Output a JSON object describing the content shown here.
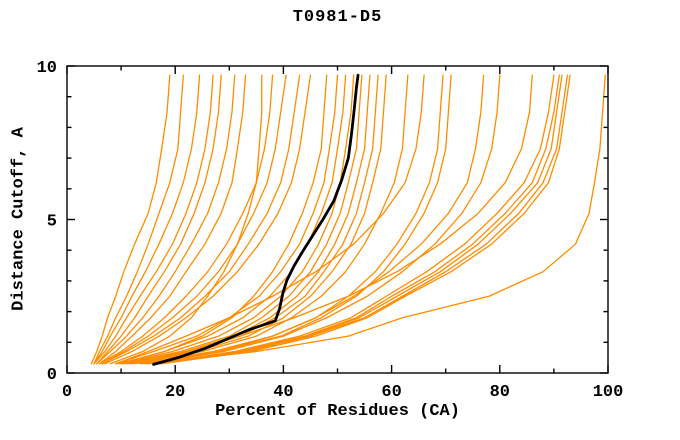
{
  "chart_data": {
    "type": "line",
    "title": "T0981-D5",
    "xlabel": "Percent of Residues (CA)",
    "ylabel": "Distance Cutoff, A",
    "xlim": [
      0,
      100
    ],
    "ylim": [
      0,
      10
    ],
    "x_major_ticks": [
      0,
      20,
      40,
      60,
      80,
      100
    ],
    "x_minor_tick_step": 10,
    "y_major_ticks": [
      0,
      5,
      10
    ],
    "y_minor_tick_step": 1,
    "grid": false,
    "legend": false,
    "frame": "box-with-inward-ticks",
    "orange_color": "#ff8c00",
    "highlight_color": "#000000",
    "background_color": "#ffffff",
    "cutoffs": [
      0.3,
      0.7,
      1.2,
      1.8,
      2.5,
      3.3,
      4.2,
      5.2,
      6.2,
      7.3,
      8.5,
      9.7
    ],
    "model_percents": [
      [
        4.5,
        5.5,
        6.5,
        7.5,
        9,
        10.5,
        12.5,
        15,
        16.5,
        17.5,
        18.5,
        19
      ],
      [
        5,
        6,
        7.5,
        9,
        11,
        13,
        15,
        17,
        19,
        20.5,
        21,
        21.5
      ],
      [
        5,
        6.5,
        8,
        10,
        12,
        14.5,
        17,
        19.5,
        21.5,
        23,
        24,
        24.5
      ],
      [
        5,
        7,
        9,
        11,
        13.5,
        16.5,
        19.5,
        22,
        24,
        25.5,
        26.5,
        27
      ],
      [
        5.5,
        7.5,
        10,
        12.5,
        15,
        18,
        21,
        23.5,
        25.5,
        27,
        28,
        28.5
      ],
      [
        5.5,
        8,
        11,
        14,
        17,
        20,
        23,
        26,
        28,
        29.5,
        30.5,
        31
      ],
      [
        6,
        9,
        12,
        15.5,
        19,
        22,
        25.5,
        28.5,
        30.5,
        31.5,
        32.5,
        33
      ],
      [
        8,
        14,
        19,
        23,
        26,
        29,
        31.5,
        33.5,
        35,
        35.5,
        36,
        36
      ],
      [
        6,
        10,
        14,
        18,
        22,
        26,
        29.5,
        32.5,
        35,
        36.5,
        37.5,
        38
      ],
      [
        6.5,
        10.5,
        15,
        19.5,
        24,
        28,
        31.5,
        34.5,
        37,
        38.5,
        39.5,
        40.5
      ],
      [
        6.5,
        11,
        16,
        21,
        25.5,
        30,
        33.5,
        37,
        39.5,
        41,
        42,
        43
      ],
      [
        7,
        12,
        17,
        22,
        27,
        31.5,
        35.5,
        39,
        41.5,
        43,
        44,
        45
      ],
      [
        10,
        18,
        25,
        30.5,
        34.5,
        38,
        41,
        43.5,
        45.5,
        47,
        47.5,
        48
      ],
      [
        9,
        16,
        24,
        30,
        35.5,
        39.5,
        43,
        45.5,
        47.5,
        48.5,
        49.5,
        50
      ],
      [
        9.5,
        18,
        26,
        32.5,
        37.5,
        41.5,
        44.5,
        47,
        49,
        50,
        51,
        51.5
      ],
      [
        10,
        19.5,
        28,
        34.5,
        39.5,
        43.5,
        46.5,
        49,
        50.5,
        51.5,
        52.5,
        53
      ],
      [
        10.5,
        21,
        30,
        36,
        41,
        45,
        48,
        50.5,
        52,
        53.5,
        54,
        54.5
      ],
      [
        11,
        22,
        31,
        37.5,
        42.5,
        46.5,
        49.5,
        52,
        53.5,
        55,
        55.5,
        56
      ],
      [
        11.5,
        23,
        32,
        38.5,
        44,
        47.5,
        51,
        53.5,
        55,
        56.5,
        57,
        57.5
      ],
      [
        12,
        24,
        33.5,
        40,
        45,
        49,
        52.5,
        55,
        56.5,
        58,
        58.5,
        59
      ],
      [
        12.5,
        25,
        35,
        41.5,
        47,
        51.5,
        55,
        58,
        60.5,
        62,
        62.5,
        63
      ],
      [
        9,
        15,
        22,
        30,
        38,
        46,
        53,
        58.5,
        62.5,
        64.5,
        65.5,
        66
      ],
      [
        13.5,
        27,
        38,
        46,
        52,
        57,
        61,
        64.5,
        67,
        68.5,
        69,
        69.5
      ],
      [
        14,
        28,
        39.5,
        47,
        53.5,
        58.5,
        62.5,
        66,
        68.5,
        70,
        70.5,
        71
      ],
      [
        14.5,
        28,
        38,
        46,
        53,
        59.5,
        65.5,
        70.5,
        74,
        75.5,
        76.5,
        77
      ],
      [
        15,
        29,
        40,
        48,
        55.5,
        62,
        68,
        73,
        76.5,
        78.5,
        79.5,
        80
      ],
      [
        12,
        22,
        32,
        42,
        52,
        61,
        69,
        76,
        81,
        84,
        85.5,
        86
      ],
      [
        16,
        31,
        43,
        52.5,
        59,
        66.5,
        73.5,
        79.5,
        84.5,
        87.5,
        89,
        90
      ],
      [
        16.5,
        32,
        44,
        53.5,
        60,
        68,
        75,
        81,
        86,
        88.5,
        90,
        91
      ],
      [
        17,
        32.5,
        44.5,
        54,
        61,
        69,
        76,
        82,
        87,
        89.5,
        90.5,
        91.5
      ],
      [
        17,
        33,
        45,
        55,
        62,
        70,
        77.5,
        83.5,
        88,
        90.5,
        91.5,
        92.5
      ],
      [
        17.5,
        34,
        46,
        55.5,
        62.5,
        71,
        78.5,
        84.5,
        89,
        91,
        92,
        93
      ],
      [
        15,
        35,
        52,
        62,
        78,
        88,
        94,
        96.5,
        97.5,
        98.5,
        99,
        99.5
      ]
    ],
    "highlight_series": {
      "cutoffs": [
        0.28,
        0.5,
        0.8,
        1.1,
        1.4,
        1.7,
        2.1,
        2.6,
        3.0,
        3.5,
        4.0,
        4.5,
        5.0,
        5.6,
        6.3,
        7.0,
        7.8,
        8.6,
        9.3,
        9.7
      ],
      "percents": [
        16,
        20.5,
        25.5,
        29.5,
        33.5,
        38.5,
        39.3,
        39.9,
        40.6,
        42,
        43.7,
        45.5,
        47.3,
        49.3,
        50.8,
        52,
        52.6,
        53.1,
        53.5,
        53.8
      ]
    }
  }
}
